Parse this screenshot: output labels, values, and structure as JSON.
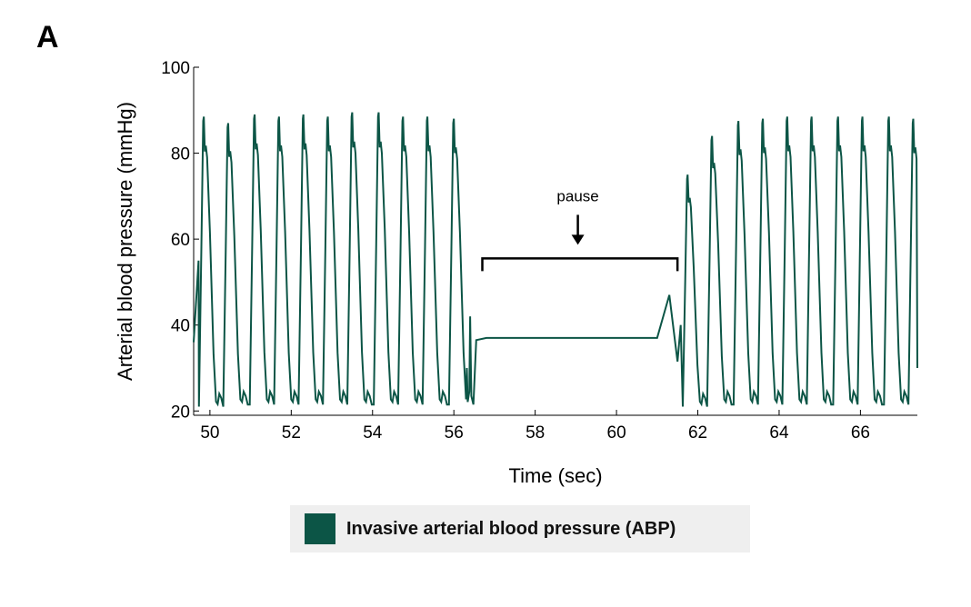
{
  "panel_label": "A",
  "chart_data": {
    "type": "line",
    "xlabel": "Time (sec)",
    "ylabel": "Arterial blood pressure (mmHg)",
    "xlim": [
      49.6,
      67.4
    ],
    "ylim": [
      19,
      100
    ],
    "x_ticks": [
      50,
      52,
      54,
      56,
      58,
      60,
      62,
      64,
      66
    ],
    "y_ticks": [
      20,
      40,
      60,
      80,
      100
    ],
    "grid": false,
    "series": [
      {
        "name": "Invasive arterial blood pressure (ABP)",
        "color": "#0c5546",
        "beats_before_pause": [
          {
            "peak_t": 49.85,
            "peak": 88.5,
            "trough": 21.0
          },
          {
            "peak_t": 50.45,
            "peak": 87.0,
            "trough": 21.5
          },
          {
            "peak_t": 51.1,
            "peak": 89.0,
            "trough": 21.5
          },
          {
            "peak_t": 51.7,
            "peak": 88.5,
            "trough": 21.5
          },
          {
            "peak_t": 52.3,
            "peak": 89.0,
            "trough": 21.5
          },
          {
            "peak_t": 52.9,
            "peak": 88.5,
            "trough": 21.5
          },
          {
            "peak_t": 53.5,
            "peak": 89.5,
            "trough": 21.5
          },
          {
            "peak_t": 54.15,
            "peak": 89.5,
            "trough": 21.5
          },
          {
            "peak_t": 54.75,
            "peak": 88.5,
            "trough": 21.5
          },
          {
            "peak_t": 55.35,
            "peak": 88.5,
            "trough": 21.5
          },
          {
            "peak_t": 56.0,
            "peak": 88.0,
            "trough": 21.5
          }
        ],
        "pause_segment": [
          {
            "t": 56.4,
            "v": 42
          },
          {
            "t": 56.55,
            "v": 36.5
          },
          {
            "t": 56.8,
            "v": 37
          },
          {
            "t": 61.0,
            "v": 37
          },
          {
            "t": 61.3,
            "v": 47
          },
          {
            "t": 61.5,
            "v": 31.5
          }
        ],
        "beats_after_pause": [
          {
            "peak_t": 61.75,
            "peak": 75.0,
            "trough": 21.0
          },
          {
            "peak_t": 62.35,
            "peak": 84.0,
            "trough": 21.5
          },
          {
            "peak_t": 63.0,
            "peak": 87.5,
            "trough": 21.5
          },
          {
            "peak_t": 63.6,
            "peak": 88.0,
            "trough": 21.5
          },
          {
            "peak_t": 64.2,
            "peak": 88.5,
            "trough": 21.5
          },
          {
            "peak_t": 64.8,
            "peak": 88.5,
            "trough": 21.5
          },
          {
            "peak_t": 65.45,
            "peak": 88.5,
            "trough": 21.5
          },
          {
            "peak_t": 66.05,
            "peak": 88.5,
            "trough": 21.5
          },
          {
            "peak_t": 66.7,
            "peak": 88.5,
            "trough": 21.5
          },
          {
            "peak_t": 67.3,
            "peak": 88.0,
            "trough": 21.5
          }
        ]
      }
    ],
    "annotations": [
      {
        "text": "pause",
        "bracket_start": 56.7,
        "bracket_end": 61.5,
        "bracket_y": 55.5,
        "arrow_x": 59.05
      }
    ],
    "legend": {
      "position": "bottom-center",
      "label": "Invasive arterial blood pressure (ABP)",
      "color": "#0c5546"
    }
  }
}
